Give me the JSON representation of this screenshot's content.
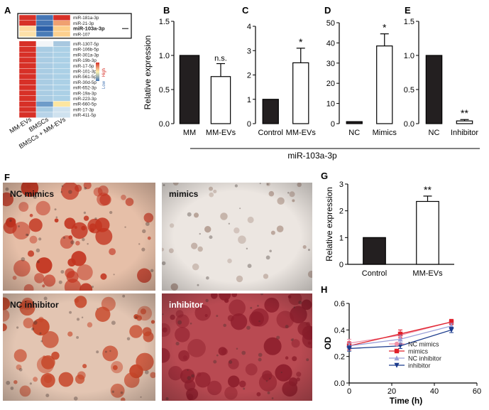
{
  "panel_letters": {
    "A": "A",
    "B": "B",
    "C": "C",
    "D": "D",
    "E": "E",
    "F": "F",
    "G": "G",
    "H": "H"
  },
  "heatmap": {
    "genes": [
      "miR-181a-3p",
      "miR-21-3p",
      "miR-103a-3p",
      "miR-107",
      "miR-1307-5p",
      "miR-106b-5p",
      "miR-301a-3p",
      "miR-19b-3p",
      "miR-17-5p",
      "miR-101-3p",
      "miR-561-5p",
      "miR-30d-5p",
      "miR-652-3p",
      "miR-19a-3p",
      "miR-223-3p",
      "miR-660-5p",
      "miR-17-3p",
      "miR-411-5p"
    ],
    "columns": [
      "MM-EVs",
      "BMSCs",
      "BMSCs + MM-EVs"
    ],
    "colors": [
      [
        "#d73027",
        "#4575b4",
        "#d73027"
      ],
      [
        "#d73027",
        "#4575b4",
        "#f0a070"
      ],
      [
        "#fdd9a0",
        "#2c5fa8",
        "#fdcf8a"
      ],
      [
        "#fde0a8",
        "#4a7bb7",
        "#fdd08e"
      ],
      [
        "#d73027",
        "#f2f5f8",
        "#a8c8e0"
      ],
      [
        "#d73027",
        "#a9cce3",
        "#abd0e6"
      ],
      [
        "#d73027",
        "#a9cce3",
        "#abd0e6"
      ],
      [
        "#d73027",
        "#a9cce3",
        "#abd0e6"
      ],
      [
        "#d73027",
        "#a9cce3",
        "#abd0e6"
      ],
      [
        "#d73027",
        "#a9cce3",
        "#abd0e6"
      ],
      [
        "#d73027",
        "#a9cce3",
        "#abd0e6"
      ],
      [
        "#d73027",
        "#a9cce3",
        "#abd0e6"
      ],
      [
        "#d73027",
        "#a9cce3",
        "#abd0e6"
      ],
      [
        "#d73027",
        "#a9cce3",
        "#abd0e6"
      ],
      [
        "#d73027",
        "#a9cce3",
        "#abd0e6"
      ],
      [
        "#d73027",
        "#6f9cc9",
        "#fde6a0"
      ],
      [
        "#d73027",
        "#a9cce3",
        "#cfe2ef"
      ],
      [
        "#d73027",
        "#b7d3e8",
        "#cfe2ef"
      ]
    ],
    "highlighted_gene": "miR-103a-3p",
    "legend_high": "High",
    "legend_low": "Low"
  },
  "shared_ylabel": "Relative expression",
  "bottom_label": "miR-103a-3p",
  "colors": {
    "filled": "#231f20",
    "open": "#ffffff",
    "stroke": "#000000"
  },
  "chart_data": [
    {
      "panel": "B",
      "type": "bar",
      "categories": [
        "MM",
        "MM-EVs"
      ],
      "values": [
        1.0,
        0.69
      ],
      "errors": [
        0,
        0.19
      ],
      "ylim": [
        0,
        1.5
      ],
      "yticks": [
        "0.0",
        "0.5",
        "1.0",
        "1.5"
      ],
      "annotation": "n.s.",
      "ylabel": "Relative expression"
    },
    {
      "panel": "C",
      "type": "bar",
      "categories": [
        "Control",
        "MM-EVs"
      ],
      "values": [
        1.0,
        2.5
      ],
      "errors": [
        0,
        0.6
      ],
      "ylim": [
        0,
        4
      ],
      "yticks": [
        "0",
        "1",
        "2",
        "3",
        "4"
      ],
      "annotation": "*"
    },
    {
      "panel": "D",
      "type": "bar",
      "categories": [
        "NC",
        "Mimics"
      ],
      "values": [
        1.0,
        38.5
      ],
      "errors": [
        0,
        6
      ],
      "ylim": [
        0,
        50
      ],
      "yticks": [
        "0",
        "10",
        "20",
        "30",
        "40",
        "50"
      ],
      "annotation": "*"
    },
    {
      "panel": "E",
      "type": "bar",
      "categories": [
        "NC",
        "Inhibitor"
      ],
      "values": [
        1.0,
        0.04
      ],
      "errors": [
        0,
        0.02
      ],
      "ylim": [
        0,
        1.5
      ],
      "yticks": [
        "0.0",
        "0.5",
        "1.0",
        "1.5"
      ],
      "annotation": "**"
    },
    {
      "panel": "G",
      "type": "bar",
      "categories": [
        "Control",
        "MM-EVs"
      ],
      "values": [
        1.0,
        2.35
      ],
      "errors": [
        0,
        0.2
      ],
      "ylim": [
        0,
        3
      ],
      "yticks": [
        "0",
        "1",
        "2",
        "3"
      ],
      "annotation": "**",
      "ylabel": "Relative expression"
    },
    {
      "panel": "H",
      "type": "line",
      "x": [
        0,
        24,
        48
      ],
      "xlim": [
        0,
        60
      ],
      "xticks": [
        "0",
        "20",
        "40",
        "60"
      ],
      "ylim": [
        0.0,
        0.6
      ],
      "yticks": [
        "0.0",
        "0.2",
        "0.4",
        "0.6"
      ],
      "xlabel": "Time (h)",
      "ylabel": "OD",
      "series": [
        {
          "name": "NC mimics",
          "values": [
            0.3,
            0.36,
            0.46
          ],
          "errors": [
            0.03,
            0.04,
            0.02
          ],
          "color": "#f090a8",
          "marker": "circle"
        },
        {
          "name": "mimics",
          "values": [
            0.28,
            0.37,
            0.46
          ],
          "errors": [
            0.03,
            0.03,
            0.02
          ],
          "color": "#e0202a",
          "marker": "square"
        },
        {
          "name": "NC inhibitor",
          "values": [
            0.28,
            0.33,
            0.43
          ],
          "errors": [
            0.02,
            0.03,
            0.02
          ],
          "color": "#9aa0d8",
          "marker": "triangle"
        },
        {
          "name": "inhibitor",
          "values": [
            0.26,
            0.28,
            0.4
          ],
          "errors": [
            0.02,
            0.02,
            0.02
          ],
          "color": "#1a3a8c",
          "marker": "triangle-down"
        }
      ]
    }
  ],
  "photos": [
    {
      "label": "NC mimics",
      "bg": "#e6bfa8",
      "blob": "#c2331f",
      "density": 55,
      "label_color": "#111111"
    },
    {
      "label": "mimics",
      "bg": "#ece6e1",
      "blob": "#b49d92",
      "density": 30,
      "label_color": "#111111"
    },
    {
      "label": "NC inhibitor",
      "bg": "#e3c5b2",
      "blob": "#c64528",
      "density": 48,
      "label_color": "#111111"
    },
    {
      "label": "inhibitor",
      "bg": "#b94a52",
      "blob": "#8e1e2c",
      "density": 60,
      "label_color": "#ffffff"
    }
  ]
}
